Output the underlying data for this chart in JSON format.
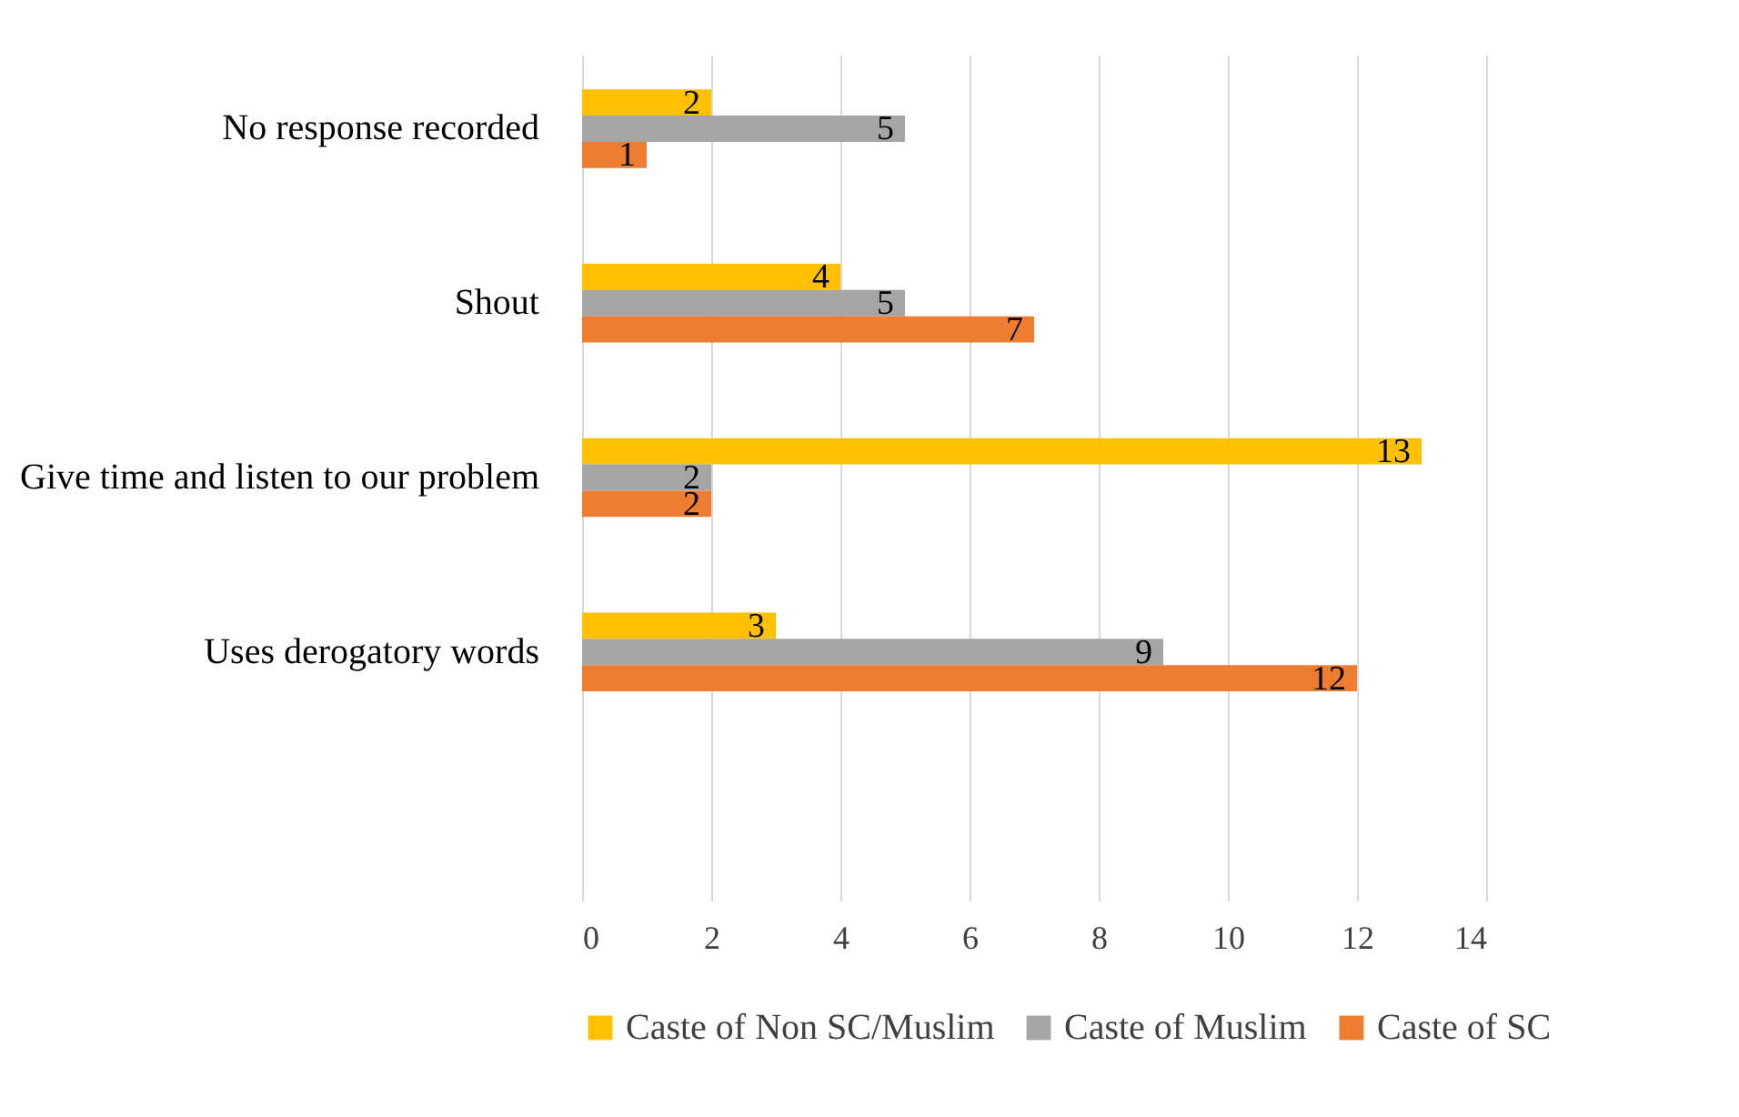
{
  "chart_data": {
    "type": "bar",
    "orientation": "horizontal",
    "categories": [
      "No response recorded",
      "Shout",
      "Give time and listen to our problem",
      "Uses derogatory words",
      null
    ],
    "series": [
      {
        "name": "Caste of Non SC/Muslim",
        "color": "#ffc000",
        "values": [
          2,
          4,
          13,
          3,
          null
        ]
      },
      {
        "name": "Caste of Muslim",
        "color": "#a5a5a5",
        "values": [
          5,
          5,
          2,
          9,
          null
        ]
      },
      {
        "name": "Caste of SC",
        "color": "#ed7d31",
        "values": [
          1,
          7,
          2,
          12,
          null
        ]
      }
    ],
    "xlim": [
      0,
      14
    ],
    "xticks": [
      0,
      2,
      4,
      6,
      8,
      10,
      12,
      14
    ],
    "grid": "x",
    "legend": "bottom",
    "data_labels": true
  }
}
